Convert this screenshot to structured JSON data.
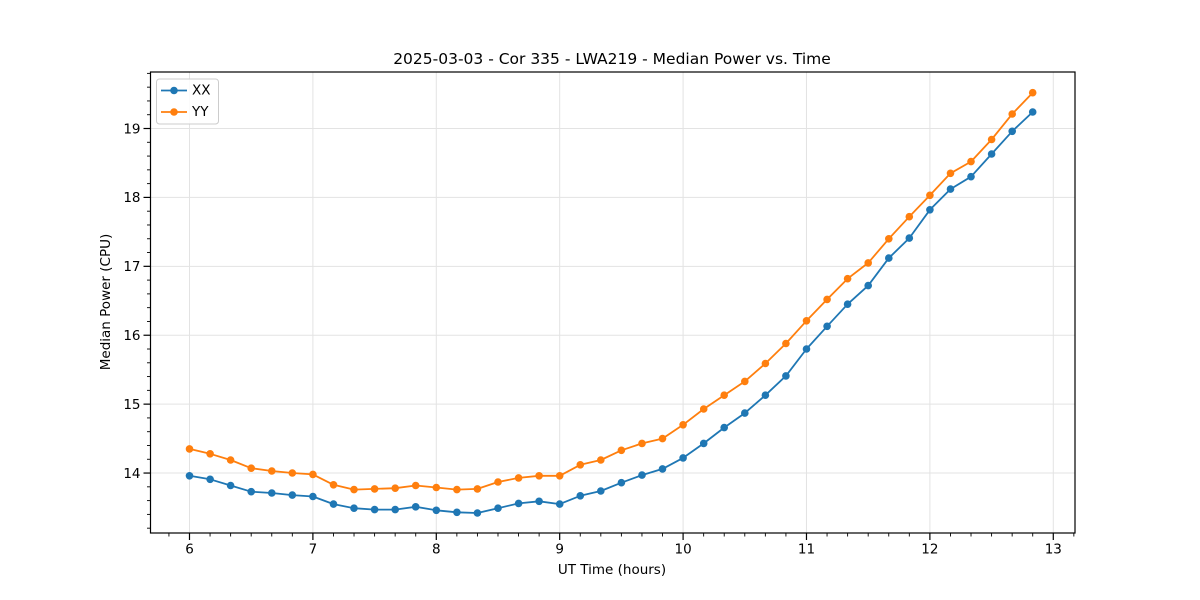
{
  "chart_data": {
    "type": "line",
    "title": "2025-03-03 - Cor 335 - LWA219 - Median Power vs. Time",
    "xlabel": "UT Time (hours)",
    "ylabel": "Median Power (CPU)",
    "xlim": [
      5.684,
      13.176
    ],
    "ylim": [
      13.13,
      19.82
    ],
    "x_ticks": [
      6,
      7,
      8,
      9,
      10,
      11,
      12,
      13
    ],
    "y_ticks": [
      14,
      15,
      16,
      17,
      18,
      19
    ],
    "x_minor_step": 0.1667,
    "y_minor_step": 0.2,
    "grid": true,
    "grid_color": "#e3e3e3",
    "legend_position": "upper-left",
    "marker": "circle",
    "x": [
      6.0,
      6.167,
      6.333,
      6.5,
      6.667,
      6.833,
      7.0,
      7.167,
      7.333,
      7.5,
      7.667,
      7.833,
      8.0,
      8.167,
      8.333,
      8.5,
      8.667,
      8.833,
      9.0,
      9.167,
      9.333,
      9.5,
      9.667,
      9.833,
      10.0,
      10.167,
      10.333,
      10.5,
      10.667,
      10.833,
      11.0,
      11.167,
      11.333,
      11.5,
      11.667,
      11.833,
      12.0,
      12.167,
      12.333,
      12.5,
      12.667,
      12.833
    ],
    "series": [
      {
        "name": "XX",
        "color": "#1f77b4",
        "values": [
          13.96,
          13.91,
          13.82,
          13.73,
          13.71,
          13.68,
          13.66,
          13.55,
          13.49,
          13.47,
          13.47,
          13.51,
          13.46,
          13.43,
          13.42,
          13.49,
          13.56,
          13.59,
          13.55,
          13.67,
          13.74,
          13.86,
          13.97,
          14.06,
          14.22,
          14.43,
          14.66,
          14.87,
          15.13,
          15.41,
          15.8,
          16.13,
          16.45,
          16.72,
          17.12,
          17.41,
          17.82,
          18.12,
          18.3,
          18.63,
          18.96,
          19.24
        ]
      },
      {
        "name": "YY",
        "color": "#ff7f0e",
        "values": [
          14.35,
          14.28,
          14.19,
          14.07,
          14.03,
          14.0,
          13.98,
          13.83,
          13.76,
          13.77,
          13.78,
          13.82,
          13.79,
          13.76,
          13.77,
          13.87,
          13.93,
          13.96,
          13.96,
          14.12,
          14.19,
          14.33,
          14.43,
          14.5,
          14.7,
          14.93,
          15.13,
          15.33,
          15.59,
          15.88,
          16.21,
          16.52,
          16.82,
          17.05,
          17.4,
          17.72,
          18.03,
          18.35,
          18.52,
          18.84,
          19.21,
          19.52
        ]
      }
    ]
  }
}
